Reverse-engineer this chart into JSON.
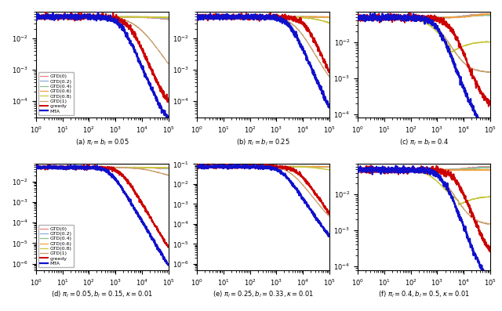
{
  "subplots": [
    {
      "label": "(a) $\\pi_l = b_l=0.05$",
      "ylim": [
        3e-05,
        0.07
      ],
      "xlim": [
        1,
        100000.0
      ],
      "scenario": "a"
    },
    {
      "label": "(b) $\\pi_l = b_l=0.25$",
      "ylim": [
        3e-05,
        0.07
      ],
      "xlim": [
        1,
        100000.0
      ],
      "scenario": "b"
    },
    {
      "label": "(c) $\\pi_l = b_l=0.4$",
      "ylim": [
        8e-05,
        0.07
      ],
      "xlim": [
        1,
        100000.0
      ],
      "scenario": "c"
    },
    {
      "label": "(d) $\\pi_l=0.05, b_l=0.15, \\kappa=0.01$",
      "ylim": [
        5e-07,
        0.07
      ],
      "xlim": [
        1,
        100000.0
      ],
      "scenario": "d"
    },
    {
      "label": "(e) $\\pi_l=0.25, b_l=0.33, \\kappa=0.01$",
      "ylim": [
        5e-07,
        0.1
      ],
      "xlim": [
        1,
        100000.0
      ],
      "scenario": "e"
    },
    {
      "label": "(f) $\\pi_l=0.4, b_l=0.5, \\kappa=0.01$",
      "ylim": [
        8e-05,
        0.07
      ],
      "xlim": [
        1,
        100000.0
      ],
      "scenario": "f"
    }
  ],
  "colors": {
    "GTD0": "#F08080",
    "GTD02": "#87AEDE",
    "GTD04": "#90C090",
    "GTD06": "#F0A040",
    "GTD08": "#C8C840",
    "GTD1": "#C8A070",
    "greedy": "#CC0000",
    "MTA": "#1010CC"
  },
  "legend_labels": [
    "GTD(0)",
    "GTD(0.2)",
    "GTD(0.4)",
    "GTD(0.6)",
    "GTD(0.8)",
    "GTD(1)",
    "greedy",
    "MTA"
  ]
}
